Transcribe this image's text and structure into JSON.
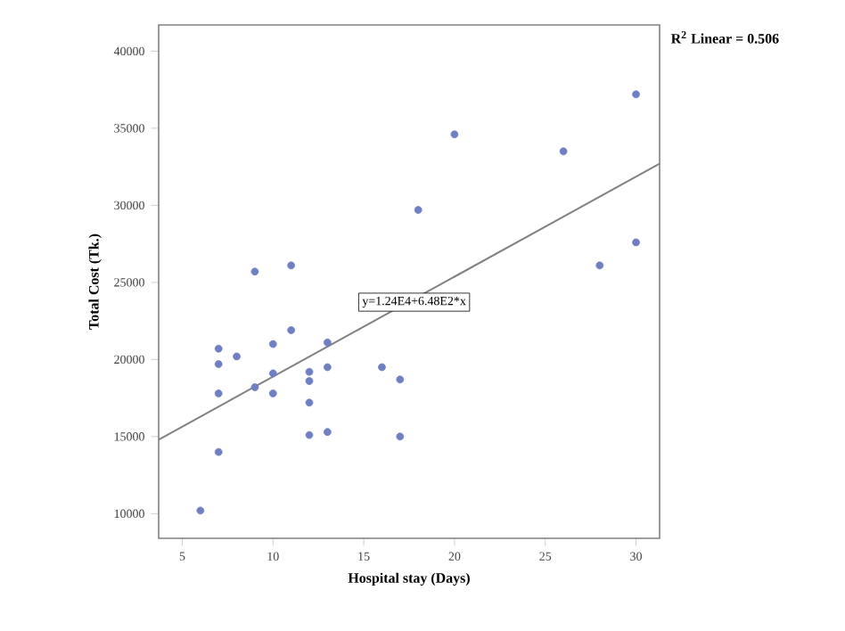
{
  "chart_data": {
    "type": "scatter",
    "xlabel": "Hospital stay (Days)",
    "ylabel": "Total Cost (Tk.)",
    "xlim": [
      3.7,
      31.3
    ],
    "ylim": [
      8400,
      41700
    ],
    "xticks": [
      5,
      10,
      15,
      20,
      25,
      30
    ],
    "yticks": [
      10000,
      15000,
      20000,
      25000,
      30000,
      35000,
      40000
    ],
    "series": [
      {
        "color": "#6f7fc4",
        "marker": "circle",
        "x": [
          6,
          7,
          7,
          7,
          7,
          8,
          9,
          9,
          10,
          10,
          10,
          11,
          11,
          12,
          12,
          12,
          12,
          13,
          13,
          13,
          16,
          17,
          17,
          18,
          20,
          26,
          28,
          30,
          30
        ],
        "values": [
          10200,
          14000,
          17800,
          19700,
          20700,
          20200,
          18200,
          25700,
          17800,
          19100,
          21000,
          21900,
          26100,
          15100,
          17200,
          18600,
          19200,
          15300,
          19500,
          21100,
          19500,
          18700,
          15000,
          29700,
          34600,
          33500,
          26100,
          37200,
          27600
        ]
      },
      {
        "type": "line",
        "color": "#808080",
        "marker": "none",
        "line_style": "solid",
        "x": [
          3.7,
          31.3
        ],
        "values": [
          14800,
          32700
        ]
      }
    ],
    "annotations": [
      "R$^{2}$ Linear = 0.506",
      "y=1.24E4+6.48E2*x"
    ]
  }
}
